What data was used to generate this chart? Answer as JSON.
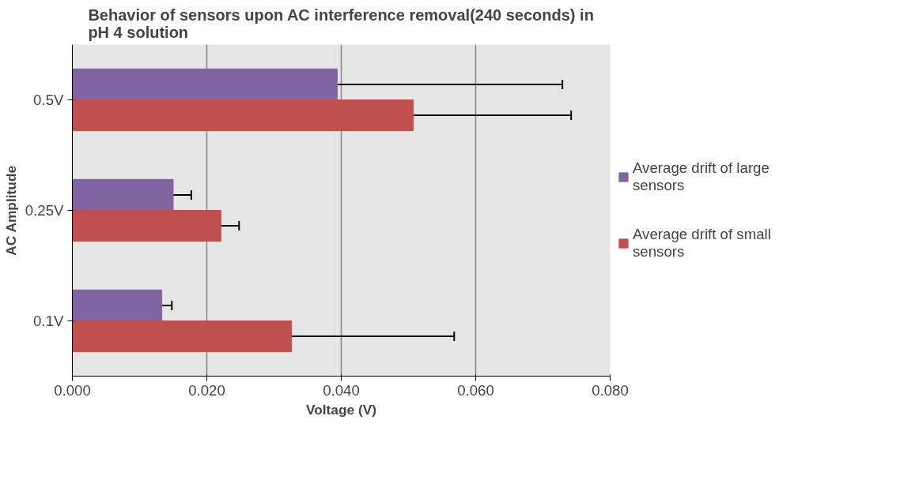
{
  "chart_data": {
    "type": "bar",
    "orientation": "horizontal",
    "title": "Behavior of sensors upon AC interference removal(240 seconds) in pH 4 solution",
    "xlabel": "Voltage (V)",
    "ylabel": "AC Amplitude",
    "categories": [
      "0.5V",
      "0.25V",
      "0.1V"
    ],
    "series": [
      {
        "name": "Average drift of large sensors",
        "color": "#8064a2",
        "values": [
          0.0394,
          0.015,
          0.0133
        ],
        "errors": [
          0.0335,
          0.0027,
          0.0015
        ]
      },
      {
        "name": "Average drift of small sensors",
        "color": "#c0504d",
        "values": [
          0.0507,
          0.0221,
          0.0326
        ],
        "errors": [
          0.0235,
          0.0027,
          0.0242
        ]
      }
    ],
    "xlim": [
      0,
      0.08
    ],
    "xticks": [
      {
        "value": 0,
        "label": "0.000"
      },
      {
        "value": 0.02,
        "label": "0.020"
      },
      {
        "value": 0.04,
        "label": "0.040"
      },
      {
        "value": 0.06,
        "label": "0.060"
      },
      {
        "value": 0.08,
        "label": "0.080"
      }
    ],
    "grid": "x",
    "legend": "right"
  }
}
